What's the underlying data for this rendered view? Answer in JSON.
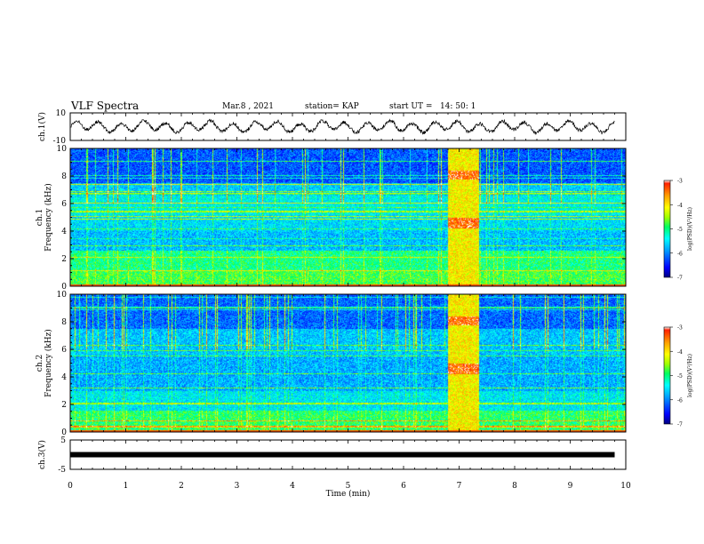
{
  "header": {
    "title": "VLF Spectra",
    "date": "Mar.8 , 2021",
    "station": "station= KAP",
    "start_ut": "start UT =   14: 50: 1"
  },
  "chart_data": [
    {
      "type": "line",
      "panel": "ch1-waveform",
      "ylabel": "ch.1(V)",
      "ylim": [
        -10,
        10
      ],
      "yticks": [
        "10",
        "-10"
      ],
      "xlim": [
        0,
        10
      ],
      "trace_extent_min": 9.8,
      "trace_amplitude_v": [
        -5,
        5
      ],
      "color": "#000000"
    },
    {
      "type": "heatmap",
      "panel": "ch1-spectrogram",
      "ylabel": "ch.1",
      "ylabel2": "Frequency (kHz)",
      "ylim": [
        0,
        10
      ],
      "yticks": [
        "0",
        "2",
        "4",
        "6",
        "8",
        "10"
      ],
      "xlim": [
        0,
        10
      ],
      "burst_interval_min": [
        6.8,
        7.35
      ],
      "colorbar": {
        "label": "log(PSD)(V²/Hz)",
        "range": [
          -7,
          -3
        ],
        "ticks": [
          "-3",
          "-4",
          "-5",
          "-6",
          "-7"
        ],
        "colors": [
          "#00007f",
          "#0000ff",
          "#00a0ff",
          "#00ffff",
          "#00ff60",
          "#a0ff00",
          "#ffff00",
          "#ffa000",
          "#ff2000",
          "#ffffff"
        ]
      }
    },
    {
      "type": "heatmap",
      "panel": "ch2-spectrogram",
      "ylabel": "ch.2",
      "ylabel2": "Frequency (kHz)",
      "ylim": [
        0,
        10
      ],
      "yticks": [
        "0",
        "2",
        "4",
        "6",
        "8",
        "10"
      ],
      "xlim": [
        0,
        10
      ],
      "burst_interval_min": [
        6.8,
        7.35
      ],
      "colorbar": {
        "label": "log(PSD)(V²/Hz)",
        "range": [
          -7,
          -3
        ],
        "ticks": [
          "-3",
          "-4",
          "-5",
          "-6",
          "-7"
        ],
        "colors": [
          "#00007f",
          "#0000ff",
          "#00a0ff",
          "#00ffff",
          "#00ff60",
          "#a0ff00",
          "#ffff00",
          "#ffa000",
          "#ff2000",
          "#ffffff"
        ]
      }
    },
    {
      "type": "line",
      "panel": "ch3-waveform",
      "ylabel": "ch.3(V)",
      "ylim": [
        -5,
        5
      ],
      "yticks": [
        "5",
        "-5"
      ],
      "xlim": [
        0,
        10
      ],
      "trace_extent_min": 9.8,
      "trace_level_v": 0
    }
  ],
  "x_axis": {
    "label": "Time (min)",
    "ticks": [
      "0",
      "1",
      "2",
      "3",
      "4",
      "5",
      "6",
      "7",
      "8",
      "9",
      "10"
    ]
  }
}
